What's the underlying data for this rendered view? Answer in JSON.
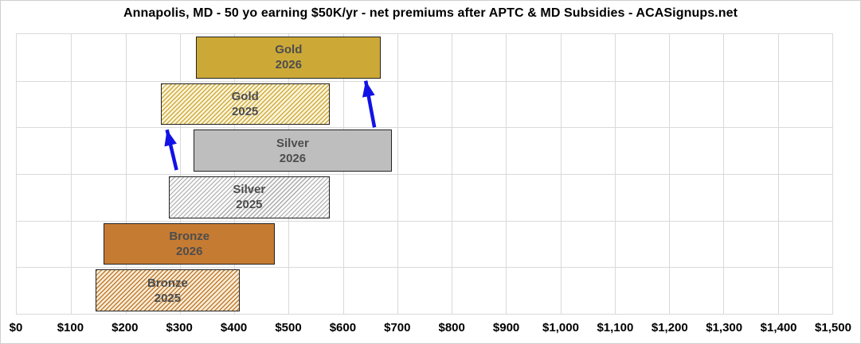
{
  "title": "Annapolis, MD - 50 yo earning $50K/yr - net premiums after APTC & MD Subsidies - ACASignups.net",
  "colors": {
    "background": "#FFFFFF",
    "grid": "#D9D9D9",
    "bar_border": "#222222",
    "bar_label": "#4D4D4D",
    "axis_text": "#000000",
    "gold": "#CCA937",
    "gold_stripe": "#CFAC3E",
    "gold_hatch_bg": "#FBF4DB",
    "silver": "#BEBEBE",
    "silver_stripe": "#ABABAB",
    "silver_hatch_bg": "#FAFAFA",
    "bronze": "#C67B32",
    "bronze_stripe": "#C07C34",
    "bronze_hatch_bg": "#FAEDD7",
    "arrow": "#1212E6"
  },
  "chart_data": {
    "type": "bar",
    "orientation": "horizontal-range",
    "title": "Annapolis, MD - 50 yo earning $50K/yr - net premiums after APTC & MD Subsidies - ACASignups.net",
    "xlabel": "",
    "ylabel": "",
    "xlim": [
      0,
      1500
    ],
    "x_tick_step": 100,
    "grid": true,
    "legend": "none",
    "x_ticks": [
      {
        "value": 0,
        "label": "$0"
      },
      {
        "value": 100,
        "label": "$100"
      },
      {
        "value": 200,
        "label": "$200"
      },
      {
        "value": 300,
        "label": "$300"
      },
      {
        "value": 400,
        "label": "$400"
      },
      {
        "value": 500,
        "label": "$500"
      },
      {
        "value": 600,
        "label": "$600"
      },
      {
        "value": 700,
        "label": "$700"
      },
      {
        "value": 800,
        "label": "$800"
      },
      {
        "value": 900,
        "label": "$900"
      },
      {
        "value": 1000,
        "label": "$1,000"
      },
      {
        "value": 1100,
        "label": "$1,100"
      },
      {
        "value": 1200,
        "label": "$1,200"
      },
      {
        "value": 1300,
        "label": "$1,300"
      },
      {
        "value": 1400,
        "label": "$1,400"
      },
      {
        "value": 1500,
        "label": "$1,500"
      }
    ],
    "rows": [
      {
        "metal": "Gold",
        "year": "2026",
        "min": 330,
        "max": 670,
        "style": "gold-solid"
      },
      {
        "metal": "Gold",
        "year": "2025",
        "min": 265,
        "max": 575,
        "style": "gold-hatch"
      },
      {
        "metal": "Silver",
        "year": "2026",
        "min": 325,
        "max": 690,
        "style": "silver-solid"
      },
      {
        "metal": "Silver",
        "year": "2025",
        "min": 280,
        "max": 575,
        "style": "silver-hatch"
      },
      {
        "metal": "Bronze",
        "year": "2026",
        "min": 160,
        "max": 475,
        "style": "bronze-solid"
      },
      {
        "metal": "Bronze",
        "year": "2025",
        "min": 145,
        "max": 410,
        "style": "bronze-hatch"
      }
    ],
    "annotations": {
      "arrow_color": "#1212E6",
      "arrows": [
        {
          "name": "gold-2026-up-arrow",
          "tail": {
            "x": 450,
            "y": 118
          },
          "tip": {
            "x": 439,
            "y": 59
          }
        },
        {
          "name": "gold-2025-up-arrow",
          "tail": {
            "x": 201,
            "y": 172
          },
          "tip": {
            "x": 189,
            "y": 121
          }
        }
      ]
    }
  }
}
